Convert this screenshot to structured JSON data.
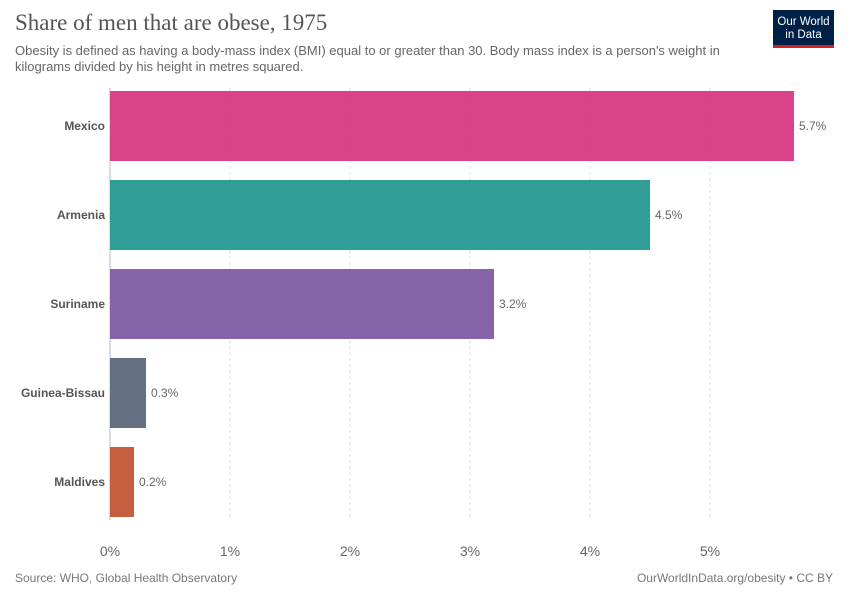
{
  "header": {
    "title": "Share of men that are obese, 1975",
    "subtitle": "Obesity is defined as having a body-mass index (BMI) equal to or greater than 30. Body mass index is a person's weight in kilograms divided by his height in metres squared."
  },
  "logo": {
    "line1": "Our World",
    "line2": "in Data",
    "background": "#002147",
    "accent": "#ce261e"
  },
  "chart_data": {
    "type": "bar",
    "orientation": "horizontal",
    "title": "Share of men that are obese, 1975",
    "categories": [
      "Mexico",
      "Armenia",
      "Suriname",
      "Guinea-Bissau",
      "Maldives"
    ],
    "values": [
      5.7,
      4.5,
      3.2,
      0.3,
      0.2
    ],
    "value_labels": [
      "5.7%",
      "4.5%",
      "3.2%",
      "0.3%",
      "0.2%"
    ],
    "colors": [
      "#d73280",
      "#20958e",
      "#7e56a2",
      "#566577",
      "#c15030"
    ],
    "xlim": [
      0,
      5.8
    ],
    "xticks": [
      0,
      1,
      2,
      3,
      4,
      5
    ],
    "xtick_labels": [
      "0%",
      "1%",
      "2%",
      "3%",
      "4%",
      "5%"
    ],
    "grid": "vertical dashed",
    "legend": "none"
  },
  "footer": {
    "source": "Source: WHO, Global Health Observatory",
    "credit": "OurWorldInData.org/obesity • CC BY"
  }
}
